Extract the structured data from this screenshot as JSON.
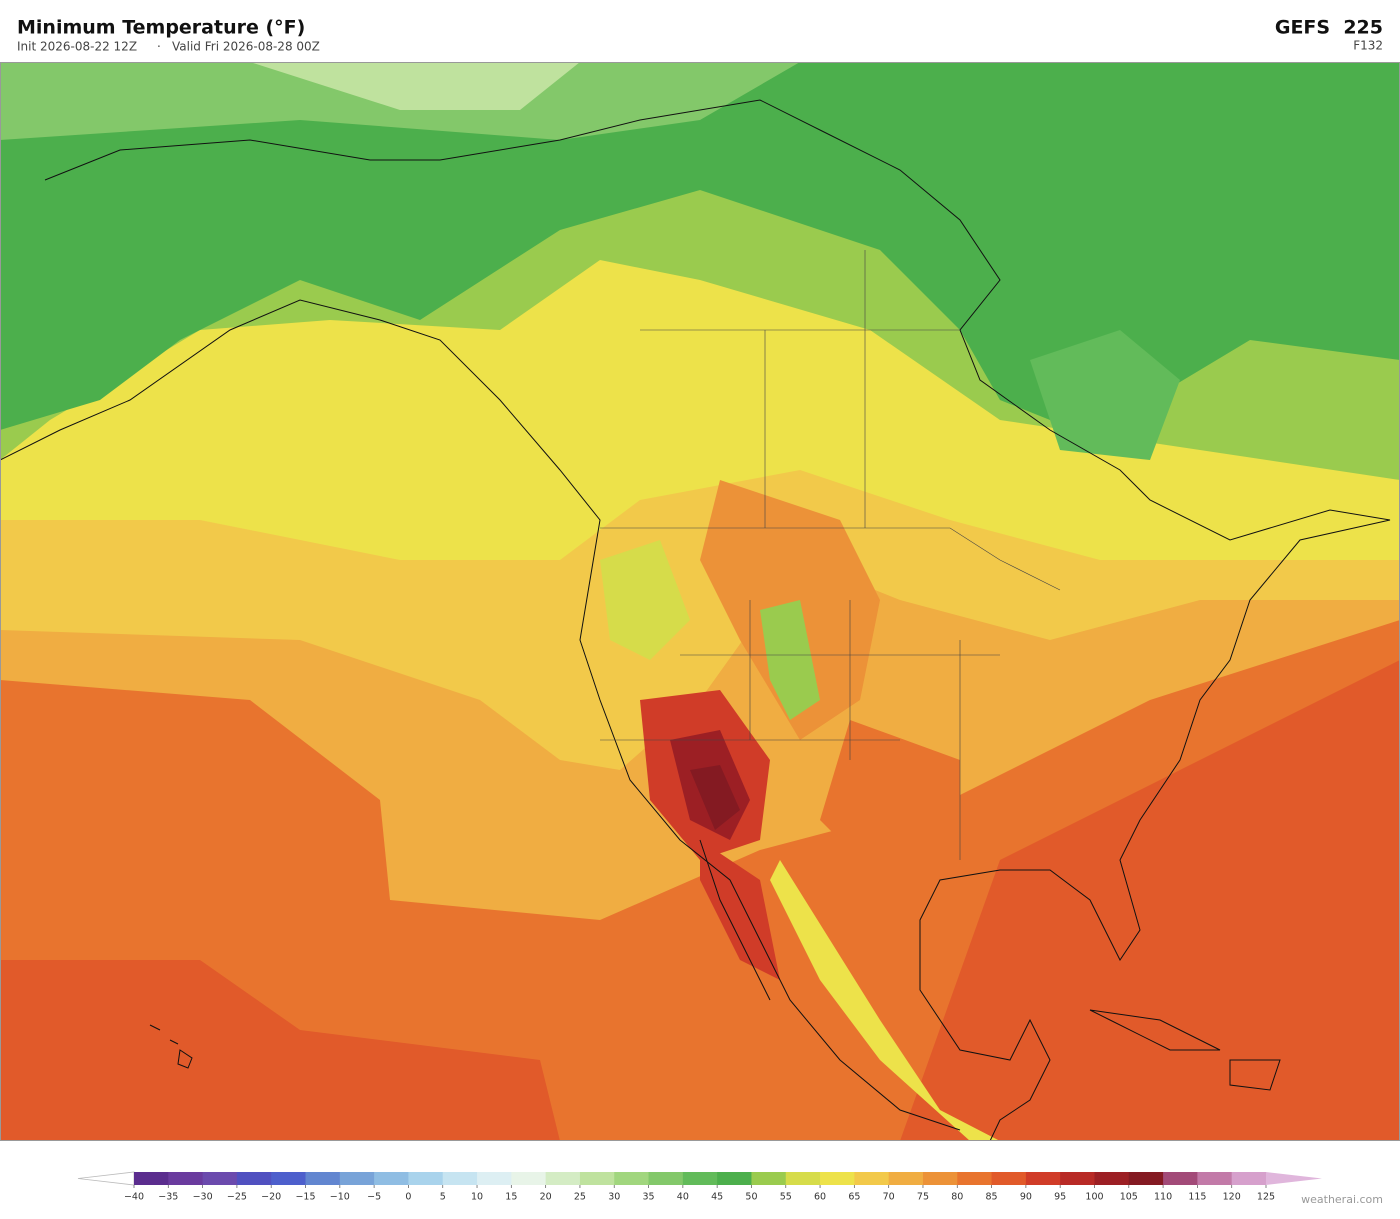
{
  "header": {
    "title": "Minimum Temperature  (°F)",
    "init": "Init 2026-08-22 12Z",
    "separator": "·",
    "valid": "Valid Fri 2026-08-28 00Z",
    "model": "GEFS  225",
    "forecast_hour": "F132"
  },
  "colorbar": {
    "ticks": [
      {
        "value": -40,
        "label": "−40"
      },
      {
        "value": -35,
        "label": "−35"
      },
      {
        "value": -30,
        "label": "−30"
      },
      {
        "value": -25,
        "label": "−25"
      },
      {
        "value": -20,
        "label": "−20"
      },
      {
        "value": -15,
        "label": "−15"
      },
      {
        "value": -10,
        "label": "−10"
      },
      {
        "value": -5,
        "label": "−5"
      },
      0,
      5,
      10,
      15,
      20,
      25,
      30,
      35,
      40,
      45,
      50,
      55,
      60,
      65,
      70,
      75,
      80,
      85,
      90,
      95,
      100,
      105,
      110,
      115,
      120,
      125
    ],
    "colors": [
      "#5b2d8e",
      "#6a3b9e",
      "#6b4aad",
      "#5050c0",
      "#4d5fcc",
      "#6286d0",
      "#78a3d8",
      "#8fbde3",
      "#a9d3ec",
      "#c6e4f1",
      "#ddeff3",
      "#e8f4e8",
      "#d4ecc4",
      "#bfe29e",
      "#a1d67e",
      "#83c86a",
      "#62bb5a",
      "#4caf4c",
      "#9acb4e",
      "#d6dc4a",
      "#ede24a",
      "#f2c94a",
      "#f0ad42",
      "#ec9238",
      "#e8742e",
      "#e15a2a",
      "#d03c28",
      "#b82a26",
      "#9c1f24",
      "#841a22",
      "#a24a78",
      "#c27aa8",
      "#d6a0cc"
    ],
    "over_color": "#e0b6dc"
  },
  "credit": "weatherai.com"
}
